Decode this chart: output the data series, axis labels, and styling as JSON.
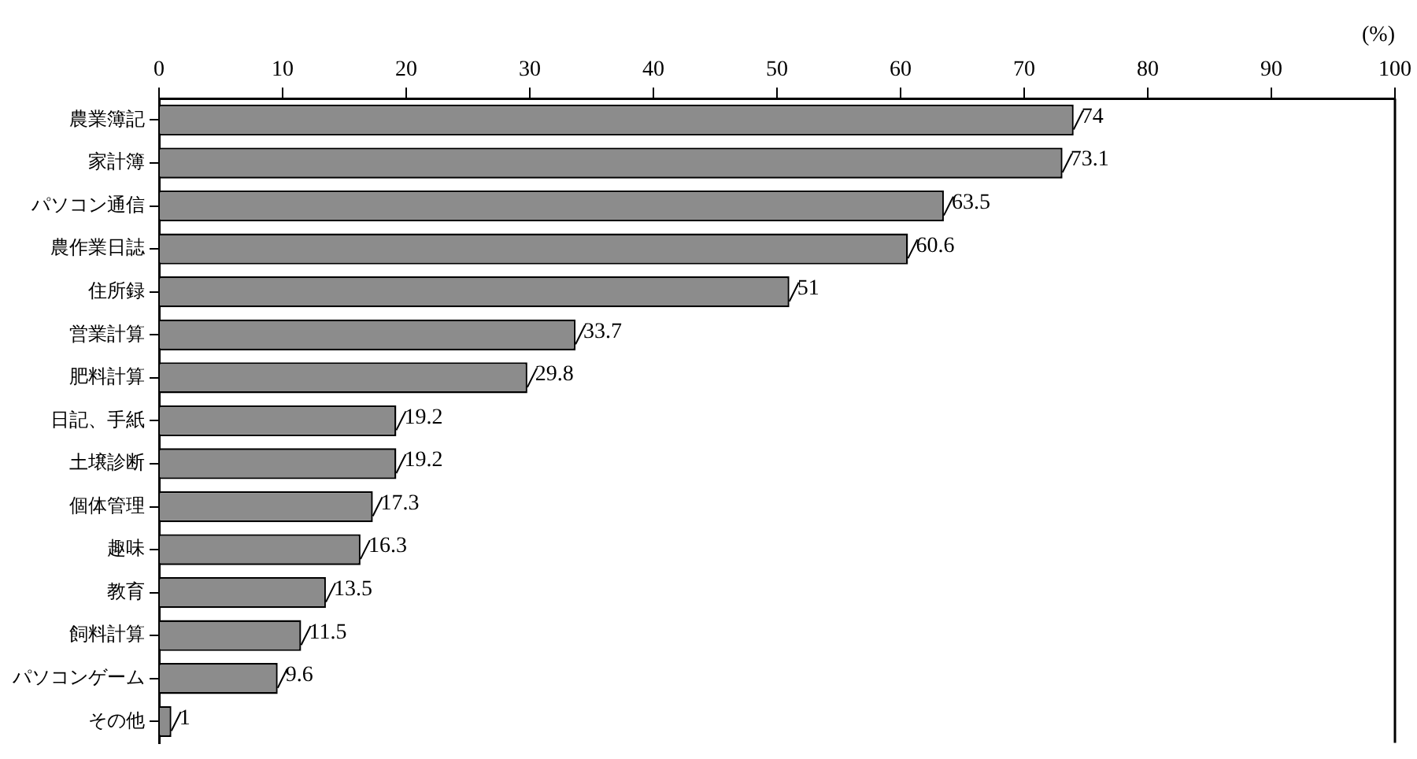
{
  "chart_data": {
    "type": "bar",
    "orientation": "horizontal",
    "xlabel": "(%)",
    "categories": [
      "農業簿記",
      "家計簿",
      "パソコン通信",
      "農作業日誌",
      "住所録",
      "営業計算",
      "肥料計算",
      "日記、手紙",
      "土壌診断",
      "個体管理",
      "趣味",
      "教育",
      "飼料計算",
      "パソコンゲーム",
      "その他"
    ],
    "values": [
      74,
      73.1,
      63.5,
      60.6,
      51,
      33.7,
      29.8,
      19.2,
      19.2,
      17.3,
      16.3,
      13.5,
      11.5,
      9.6,
      1
    ],
    "color": "#8c8c8c",
    "xlim": [
      0,
      100
    ],
    "xticks": [
      0,
      10,
      20,
      30,
      40,
      50,
      60,
      70,
      80,
      90,
      100
    ],
    "data_labels": true,
    "grid": false,
    "legend": false
  }
}
